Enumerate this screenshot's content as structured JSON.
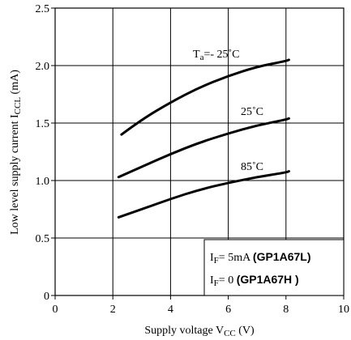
{
  "chart_data": {
    "type": "line",
    "xlabel_main": "Supply voltage V",
    "xlabel_sub": "CC",
    "xlabel_unit": " (V)",
    "ylabel_main": "Low level supply current I",
    "ylabel_sub": "CCL",
    "ylabel_unit": " (mA)",
    "xlim": [
      0,
      10
    ],
    "ylim": [
      0,
      2.5
    ],
    "xticks": [
      "0",
      "2",
      "4",
      "6",
      "8",
      "10"
    ],
    "yticks": [
      "0",
      "0.5",
      "1.0",
      "1.5",
      "2.0",
      "2.5"
    ],
    "grid": true,
    "series": [
      {
        "name": "-25˚C",
        "label_prefix": "T",
        "label_sub": "a",
        "label_text": "=- 25˚C",
        "x": [
          2.3,
          3.0,
          4.0,
          5.0,
          6.0,
          7.0,
          8.0,
          8.1
        ],
        "y": [
          1.4,
          1.53,
          1.68,
          1.81,
          1.91,
          1.99,
          2.04,
          2.05
        ]
      },
      {
        "name": "25˚C",
        "label_text": "25˚C",
        "x": [
          2.2,
          3.0,
          4.0,
          5.0,
          6.0,
          7.0,
          8.0,
          8.1
        ],
        "y": [
          1.03,
          1.12,
          1.23,
          1.33,
          1.41,
          1.48,
          1.53,
          1.54
        ]
      },
      {
        "name": "85˚C",
        "label_text": "85˚C",
        "x": [
          2.2,
          3.0,
          4.0,
          5.0,
          6.0,
          7.0,
          8.0,
          8.1
        ],
        "y": [
          0.68,
          0.75,
          0.84,
          0.92,
          0.98,
          1.03,
          1.07,
          1.08
        ]
      }
    ],
    "annotation": {
      "line1_prefix": "I",
      "line1_sub": "F",
      "line1_value": "= 5mA ",
      "line1_part": "(GP1A67L)",
      "line2_prefix": "I",
      "line2_sub": "F",
      "line2_value": "= 0 ",
      "line2_part": "(GP1A67H )"
    }
  }
}
